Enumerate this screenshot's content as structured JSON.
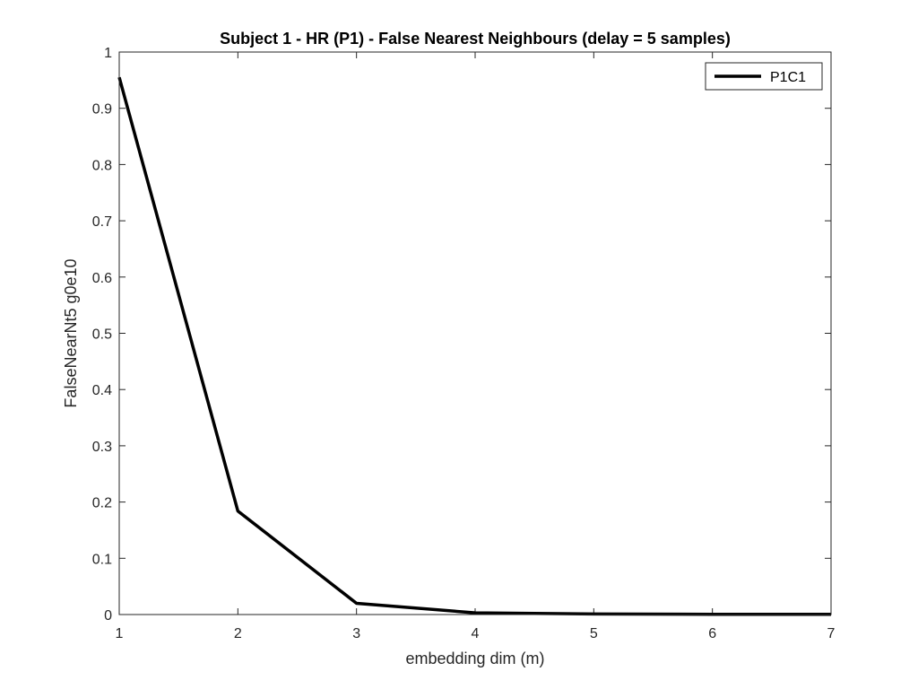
{
  "chart_data": {
    "type": "line",
    "title": "Subject 1 - HR (P1) - False Nearest Neighbours (delay = 5 samples)",
    "xlabel": "embedding dim (m)",
    "ylabel": "FalseNearNt5 g0e10",
    "xlim": [
      1,
      7
    ],
    "ylim": [
      0,
      1
    ],
    "x_ticks": [
      1,
      2,
      3,
      4,
      5,
      6,
      7
    ],
    "x_tick_labels": [
      "1",
      "2",
      "3",
      "4",
      "5",
      "6",
      "7"
    ],
    "y_ticks": [
      0,
      0.1,
      0.2,
      0.3,
      0.4,
      0.5,
      0.6,
      0.7,
      0.8,
      0.9,
      1
    ],
    "y_tick_labels": [
      "0",
      "0.1",
      "0.2",
      "0.3",
      "0.4",
      "0.5",
      "0.6",
      "0.7",
      "0.8",
      "0.9",
      "1"
    ],
    "grid": false,
    "legend_position": "top-right",
    "series": [
      {
        "name": "P1C1",
        "color": "#000000",
        "x": [
          1,
          2,
          3,
          4,
          5,
          6,
          7
        ],
        "y": [
          0.955,
          0.184,
          0.02,
          0.003,
          0.001,
          0.0005,
          0.0003
        ]
      }
    ]
  }
}
